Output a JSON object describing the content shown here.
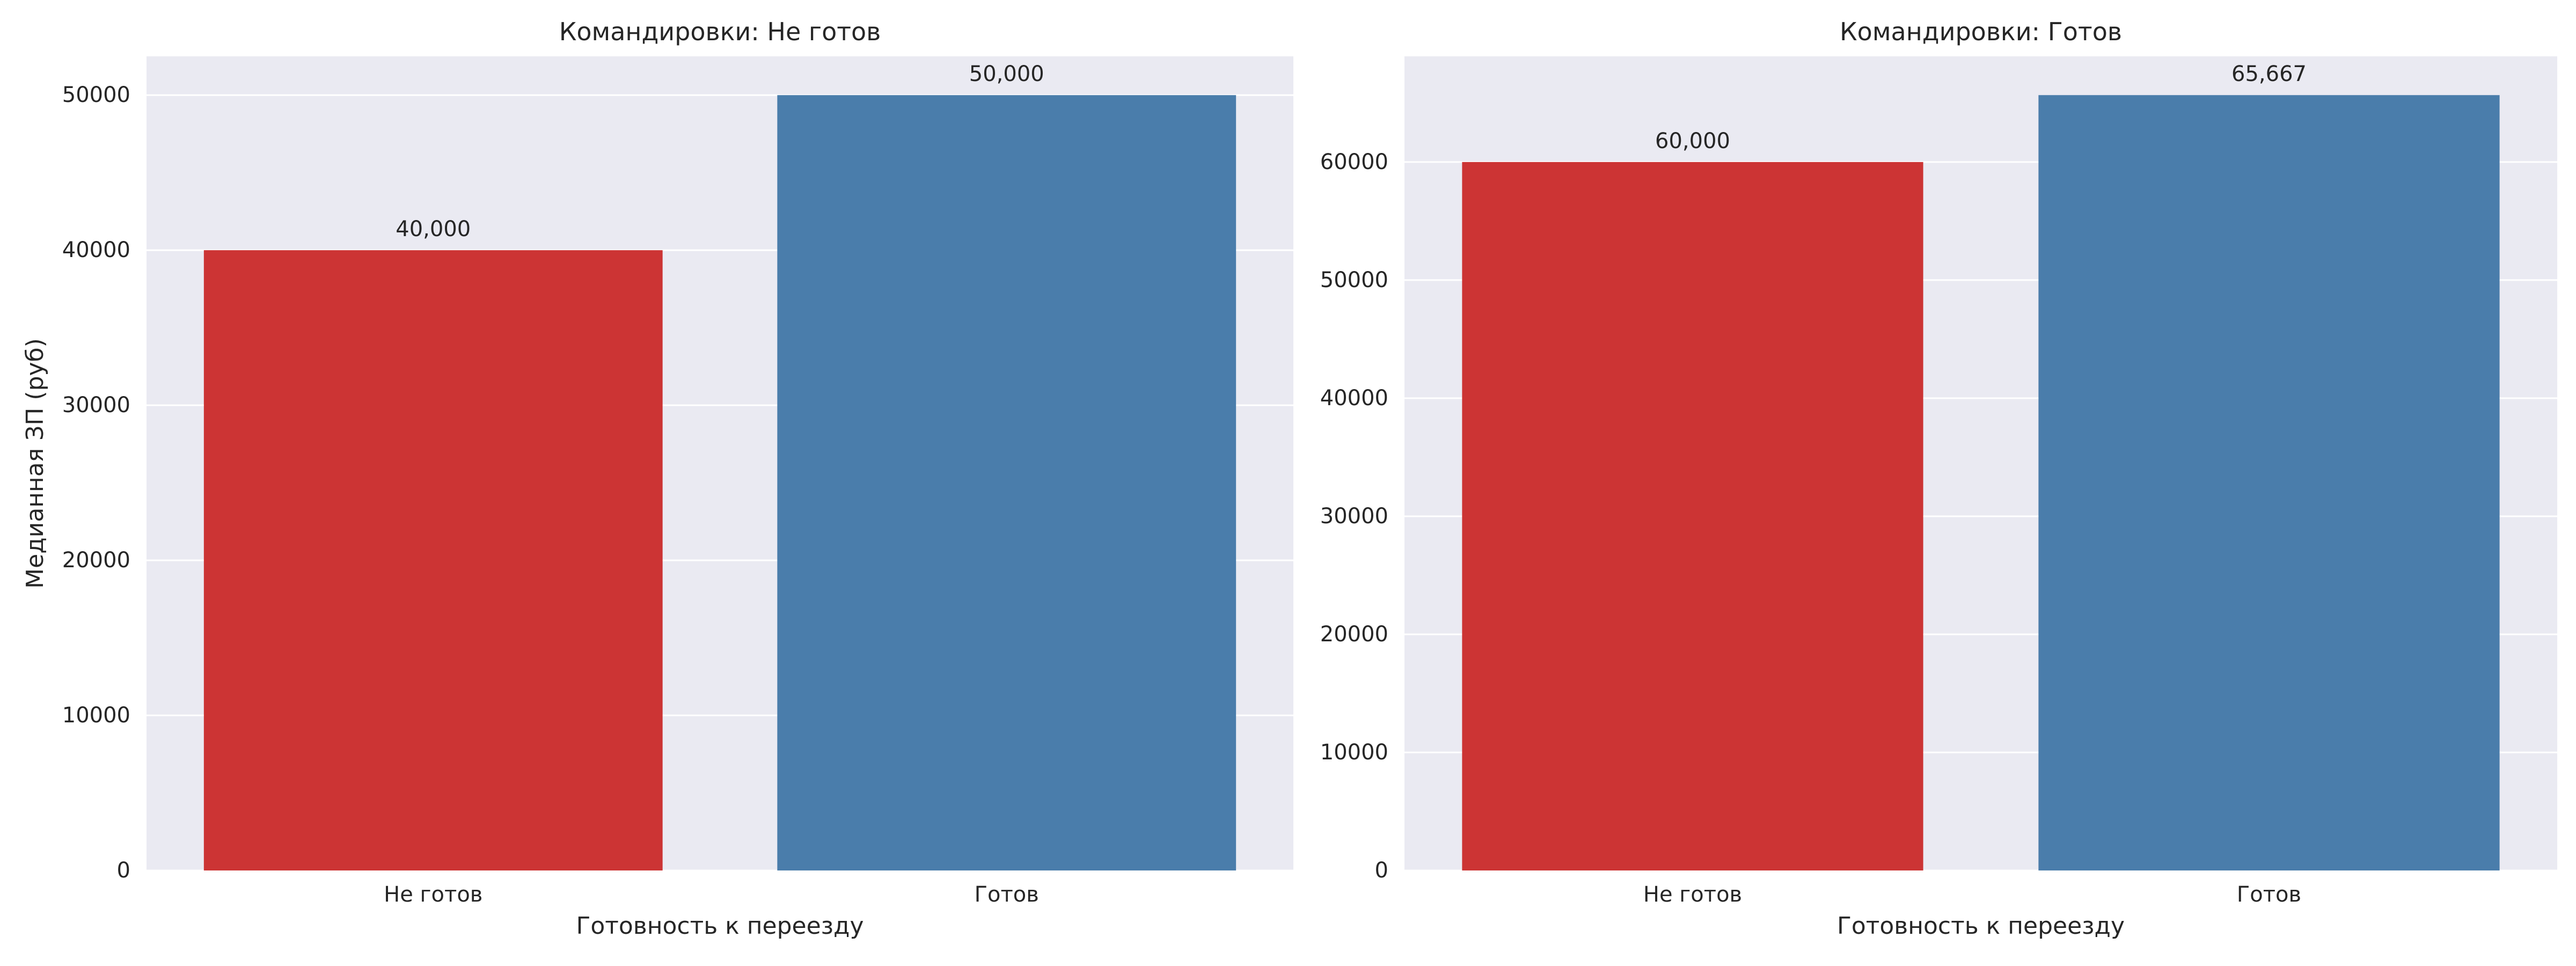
{
  "chart_data": [
    {
      "type": "bar",
      "title": "Командировки: Не готов",
      "xlabel": "Готовность к переезду",
      "ylabel": "Медианная ЗП (руб)",
      "categories": [
        "Не готов",
        "Готов"
      ],
      "values": [
        40000,
        50000
      ],
      "data_labels": [
        "40,000",
        "50,000"
      ],
      "colors": [
        "#cc3434",
        "#4a7dab"
      ],
      "ylim": [
        0,
        52500
      ],
      "yticks": [
        0,
        10000,
        20000,
        30000,
        40000,
        50000
      ],
      "ytick_labels": [
        "0",
        "10000",
        "20000",
        "30000",
        "40000",
        "50000"
      ],
      "grid": true
    },
    {
      "type": "bar",
      "title": "Командировки: Готов",
      "xlabel": "Готовность к переезду",
      "ylabel": "",
      "categories": [
        "Не готов",
        "Готов"
      ],
      "values": [
        60000,
        65667
      ],
      "data_labels": [
        "60,000",
        "65,667"
      ],
      "colors": [
        "#cc3434",
        "#4a7dab"
      ],
      "ylim": [
        0,
        68950
      ],
      "yticks": [
        0,
        10000,
        20000,
        30000,
        40000,
        50000,
        60000
      ],
      "ytick_labels": [
        "0",
        "10000",
        "20000",
        "30000",
        "40000",
        "50000",
        "60000"
      ],
      "grid": true
    }
  ]
}
